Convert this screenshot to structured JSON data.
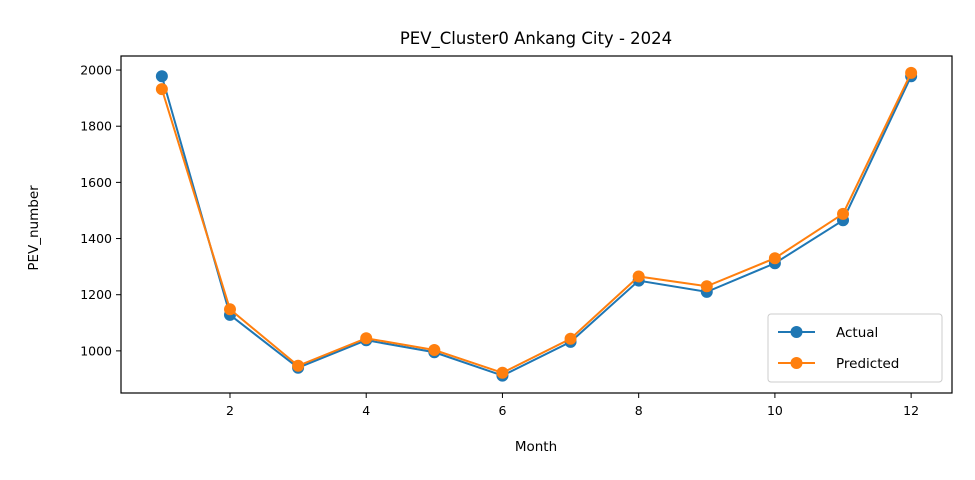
{
  "chart_data": {
    "type": "line",
    "title": "PEV_Cluster0 Ankang City - 2024",
    "xlabel": "Month",
    "ylabel": "PEV_number",
    "x": [
      1,
      2,
      3,
      4,
      5,
      6,
      7,
      8,
      9,
      10,
      11,
      12
    ],
    "xlim": [
      0.4,
      12.6
    ],
    "ylim": [
      850,
      2050
    ],
    "xticks": [
      2,
      4,
      6,
      8,
      10,
      12
    ],
    "yticks": [
      1000,
      1200,
      1400,
      1600,
      1800,
      2000
    ],
    "grid": false,
    "legend_position": "lower-right",
    "series": [
      {
        "name": "Actual",
        "color": "#1f77b4",
        "marker": "circle",
        "values": [
          1978,
          1128,
          940,
          1038,
          995,
          912,
          1032,
          1250,
          1210,
          1312,
          1465,
          1978
        ]
      },
      {
        "name": "Predicted",
        "color": "#ff7f0e",
        "marker": "circle",
        "values": [
          1932,
          1148,
          947,
          1045,
          1003,
          922,
          1043,
          1265,
          1230,
          1330,
          1488,
          1990
        ]
      }
    ]
  }
}
